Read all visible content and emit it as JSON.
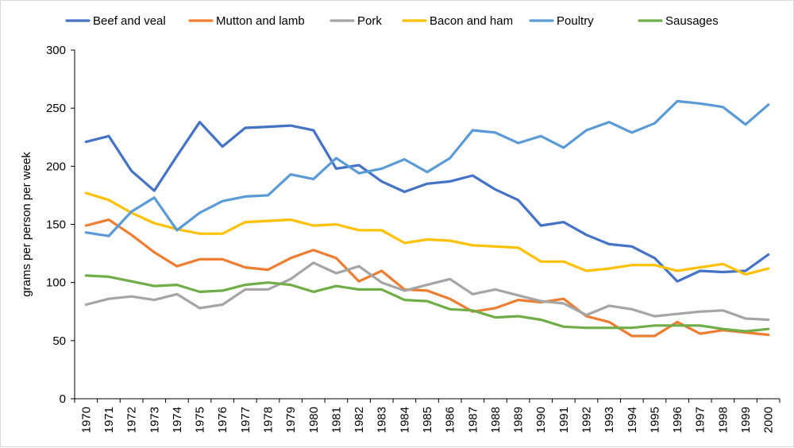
{
  "chart_data": {
    "type": "line",
    "title": "",
    "xlabel": "",
    "ylabel": "grams per person per week",
    "ylim": [
      0,
      300
    ],
    "yticks": [
      0,
      50,
      100,
      150,
      200,
      250,
      300
    ],
    "grid": false,
    "legend_position": "top",
    "categories": [
      "1970",
      "1971",
      "1972",
      "1973",
      "1974",
      "1975",
      "1976",
      "1977",
      "1978",
      "1979",
      "1980",
      "1981",
      "1982",
      "1983",
      "1984",
      "1985",
      "1986",
      "1987",
      "1988",
      "1989",
      "1990",
      "1991",
      "1992",
      "1993",
      "1994",
      "1995",
      "1996",
      "1997",
      "1998",
      "1999",
      "2000"
    ],
    "series": [
      {
        "name": "Beef and veal",
        "color": "#4472C4",
        "values": [
          221,
          226,
          196,
          179,
          209,
          238,
          217,
          233,
          234,
          235,
          231,
          198,
          201,
          187,
          178,
          185,
          187,
          192,
          180,
          171,
          149,
          152,
          141,
          133,
          131,
          121,
          101,
          110,
          109,
          110,
          124
        ]
      },
      {
        "name": "Mutton and lamb",
        "color": "#ED7D31",
        "values": [
          149,
          154,
          141,
          126,
          114,
          120,
          120,
          113,
          111,
          121,
          128,
          121,
          101,
          110,
          94,
          93,
          86,
          75,
          78,
          85,
          83,
          86,
          71,
          66,
          54,
          54,
          66,
          56,
          59,
          57,
          55
        ]
      },
      {
        "name": "Pork",
        "color": "#A5A5A5",
        "values": [
          81,
          86,
          88,
          85,
          90,
          78,
          81,
          94,
          94,
          103,
          117,
          108,
          114,
          100,
          93,
          98,
          103,
          90,
          94,
          89,
          84,
          82,
          72,
          80,
          77,
          71,
          73,
          75,
          76,
          69,
          68
        ]
      },
      {
        "name": "Bacon and ham",
        "color": "#FFC000",
        "values": [
          177,
          171,
          160,
          151,
          146,
          142,
          142,
          152,
          153,
          154,
          149,
          150,
          145,
          145,
          134,
          137,
          136,
          132,
          131,
          130,
          118,
          118,
          110,
          112,
          115,
          115,
          110,
          113,
          116,
          107,
          112
        ]
      },
      {
        "name": "Poultry",
        "color": "#5B9BD5",
        "values": [
          143,
          140,
          161,
          173,
          145,
          160,
          170,
          174,
          175,
          193,
          189,
          207,
          194,
          198,
          206,
          195,
          207,
          231,
          229,
          220,
          226,
          216,
          231,
          238,
          229,
          237,
          256,
          254,
          251,
          236,
          253
        ]
      },
      {
        "name": "Sausages",
        "color": "#70AD47",
        "values": [
          106,
          105,
          101,
          97,
          98,
          92,
          93,
          98,
          100,
          98,
          92,
          97,
          94,
          94,
          85,
          84,
          77,
          76,
          70,
          71,
          68,
          62,
          61,
          61,
          61,
          63,
          63,
          63,
          60,
          58,
          60
        ]
      }
    ]
  }
}
